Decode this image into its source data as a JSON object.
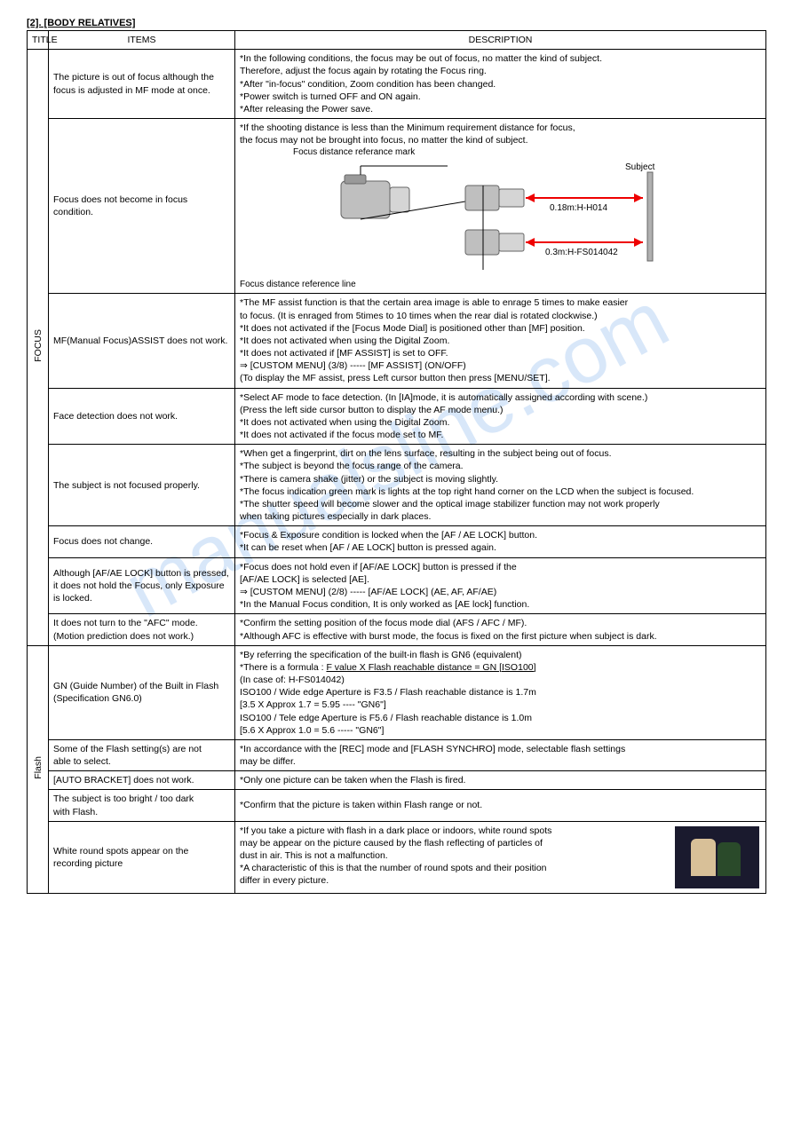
{
  "section_header": "[2]. [BODY RELATIVES]",
  "headers": {
    "title": "TITLE",
    "items": "ITEMS",
    "description": "DESCRIPTION"
  },
  "watermark": "manualsline.com",
  "focus": {
    "title": "FOCUS",
    "rows": [
      {
        "item": "The picture is out of focus although the focus is adjusted in MF mode at once.",
        "desc": "*In the following conditions, the focus may be out of focus, no matter the kind of subject.\nTherefore, adjust the focus again by rotating the Focus ring.\n *After \"in-focus\" condition, Zoom condition has been changed.\n *Power switch is turned OFF and ON again.\n *After releasing the Power save."
      },
      {
        "item": "Focus does not become in focus condition.",
        "desc_pre": "*If the shooting distance is less than the Minimum requirement distance for focus,\nthe focus may not be brought into  focus, no matter the kind of subject.",
        "diagram": {
          "label_top": "Focus distance referance mark",
          "label_subject": "Subject",
          "dist1": "0.18m:H-H014",
          "dist2": "0.3m:H-FS014042",
          "label_bottom": "Focus distance reference line"
        }
      },
      {
        "item": "MF(Manual Focus)ASSIST does not work.",
        "desc": "*The MF assist function is that the certain area image is able to enrage 5 times to make easier\n to focus. (It is enraged from 5times to 10 times when the rear dial is rotated clockwise.)\n*It does not activated if the [Focus Mode Dial] is positioned other than [MF] position.\n*It does not activated when using the Digital Zoom.\n*It does not activated if [MF ASSIST] is set to OFF.\n⇒ [CUSTOM MENU] (3/8) ----- [MF ASSIST] (ON/OFF)\n (To display the MF assist, press Left cursor button then press [MENU/SET]."
      },
      {
        "item": "Face detection does not work.",
        "desc": "*Select AF mode to face detection. (In [IA]mode, it is automatically assigned according with scene.)\n (Press the left side cursor button to display the AF mode menu.)\n*It does not activated when using the Digital Zoom.\n*It does not activated if the focus mode set to MF."
      },
      {
        "item": "The subject is not focused properly.",
        "desc": "*When get a fingerprint, dirt on the lens surface, resulting in the subject being out of focus.\n*The subject is beyond the focus range of the camera.\n*There is camera shake (jitter) or the subject is moving slightly.\n*The focus indication green mark is lights at the top right hand corner on the LCD when the subject is focused.\n*The shutter speed will become slower and the optical image stabilizer function may not work properly\n when taking pictures especially in dark places."
      },
      {
        "item": "Focus does not change.",
        "desc": "*Focus & Exposure condition is locked when the [AF / AE LOCK] button.\n*It can be reset when [AF / AE LOCK] button is pressed again."
      },
      {
        "item": "Although [AF/AE LOCK] button is pressed, it does not hold the Focus, only  Exposure is locked.",
        "desc": "*Focus does not hold even if [AF/AE LOCK] button is pressed if the\n [AF/AE LOCK] is selected [AE].\n⇒ [CUSTOM MENU]  (2/8) ----- [AF/AE LOCK] (AE, AF, AF/AE)\n*In the Manual Focus condition, It is only worked as [AE lock] function."
      },
      {
        "item": "It does not turn to the \"AFC\" mode.\n(Motion prediction does not work.)",
        "desc": "*Confirm the setting position of the focus mode dial (AFS / AFC / MF).\n*Although AFC is effective with burst mode, the focus is fixed on the first picture when subject is dark."
      }
    ]
  },
  "flash": {
    "title": "Flash",
    "rows": [
      {
        "item": "GN (Guide Number) of the Built in Flash\n(Specification GN6.0)",
        "desc_pre": "*By referring the specification of the built-in flash is GN6 (equivalent)\n*There is a formula : ",
        "desc_u": "F value X Flash reachable distance = GN [ISO100]",
        "desc_post": "\n (In case of: H-FS014042)\n ISO100 / Wide edge Aperture is F3.5 / Flash reachable distance is 1.7m\n         [3.5 X Approx 1.7 = 5.95 ---- \"GN6\"]\n ISO100 / Tele edge Aperture is F5.6 / Flash reachable distance is 1.0m\n         [5.6 X Approx 1.0 = 5.6 ----- \"GN6\"]"
      },
      {
        "item": "Some of the Flash setting(s) are not\nable to select.",
        "desc": "*In accordance with the [REC] mode and [FLASH SYNCHRO] mode, selectable flash settings\n may be differ."
      },
      {
        "item": "[AUTO BRACKET] does not work.",
        "desc": "*Only one picture can be taken when the Flash is fired."
      },
      {
        "item": "The subject is too bright / too dark\nwith Flash.",
        "desc": "*Confirm that the picture is taken within Flash range or not."
      },
      {
        "item": "White round spots appear on the recording picture",
        "desc": "*If you take a picture with flash in a dark place or indoors, white round spots\n may be appear on the picture caused by the flash reflecting of particles of\n dust in air. This is not a malfunction.\n*A characteristic of this is that the number of round spots and their position\n differ in every picture.",
        "has_photo": true
      }
    ]
  }
}
